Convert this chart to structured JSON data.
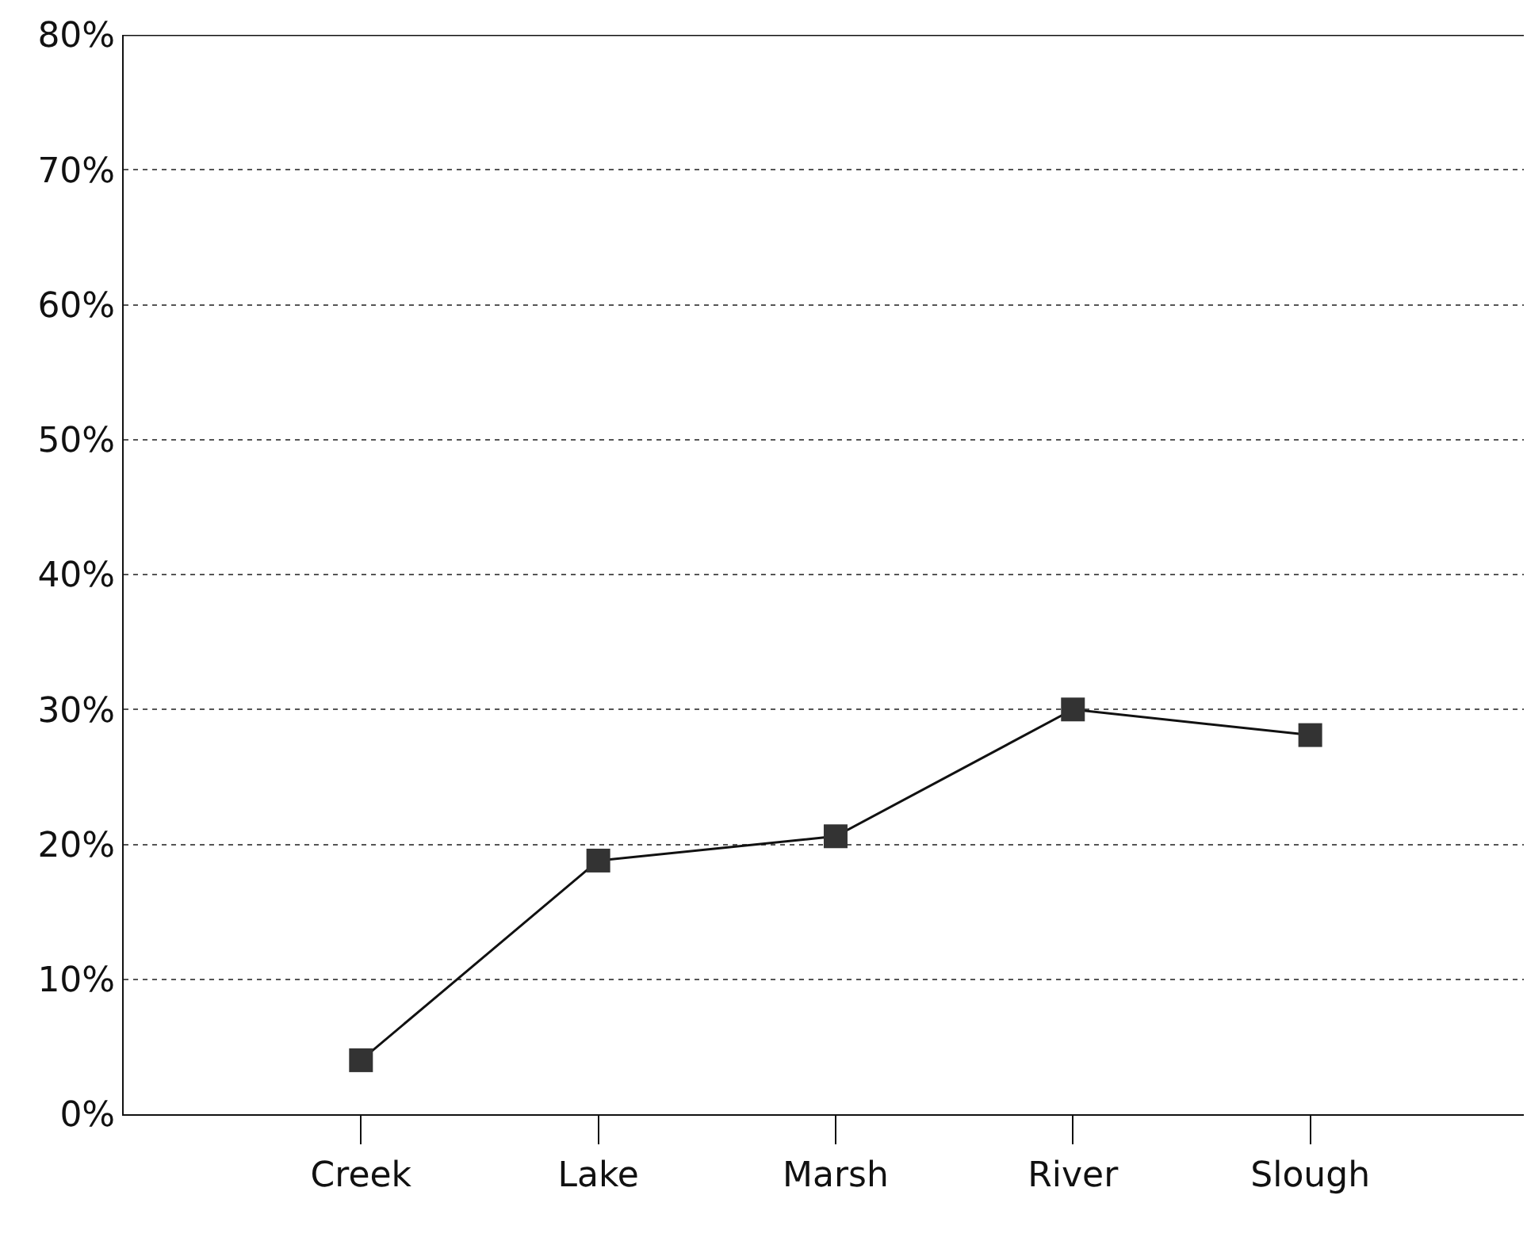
{
  "chart_data": {
    "type": "line",
    "categories": [
      "Creek",
      "Lake",
      "Marsh",
      "River",
      "Slough"
    ],
    "series": [
      {
        "color": "#333333",
        "values": [
          4,
          18.8,
          20.6,
          30,
          28.1
        ]
      }
    ],
    "ylim": [
      0,
      80
    ],
    "yticks": [
      {
        "value": 0,
        "label": "0%"
      },
      {
        "value": 10,
        "label": "10%"
      },
      {
        "value": 20,
        "label": "20%"
      },
      {
        "value": 30,
        "label": "30%"
      },
      {
        "value": 40,
        "label": "40%"
      },
      {
        "value": 50,
        "label": "50%"
      },
      {
        "value": 60,
        "label": "60%"
      },
      {
        "value": 70,
        "label": "70%"
      },
      {
        "value": 80,
        "label": "80%"
      }
    ],
    "grid": "y",
    "marker": "square",
    "line_style": "solid"
  }
}
